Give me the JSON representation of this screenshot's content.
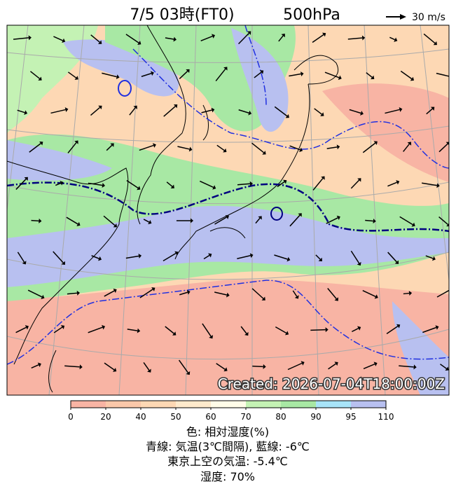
{
  "header": {
    "title": "7/5 03時(FT0)",
    "level": "500hPa"
  },
  "reference_vector": {
    "label": "30 m/s"
  },
  "stamp": "Created: 2026-07-04T18:00:00Z",
  "colorbar": {
    "ticks": [
      0,
      20,
      40,
      50,
      60,
      70,
      80,
      90,
      95,
      110
    ],
    "colors": [
      "#f8b4a4",
      "#fbc8aa",
      "#fdd8b4",
      "#feeacc",
      "#fffce8",
      "#c4f2b4",
      "#a8e8a4",
      "#a8e4f8",
      "#b8c0f0"
    ]
  },
  "caption": [
    "色: 相対湿度(%)",
    "青線: 気温(3℃間隔), 藍線: -6℃",
    "東京上空の気温: -5.4℃",
    "湿度: 70%"
  ]
}
